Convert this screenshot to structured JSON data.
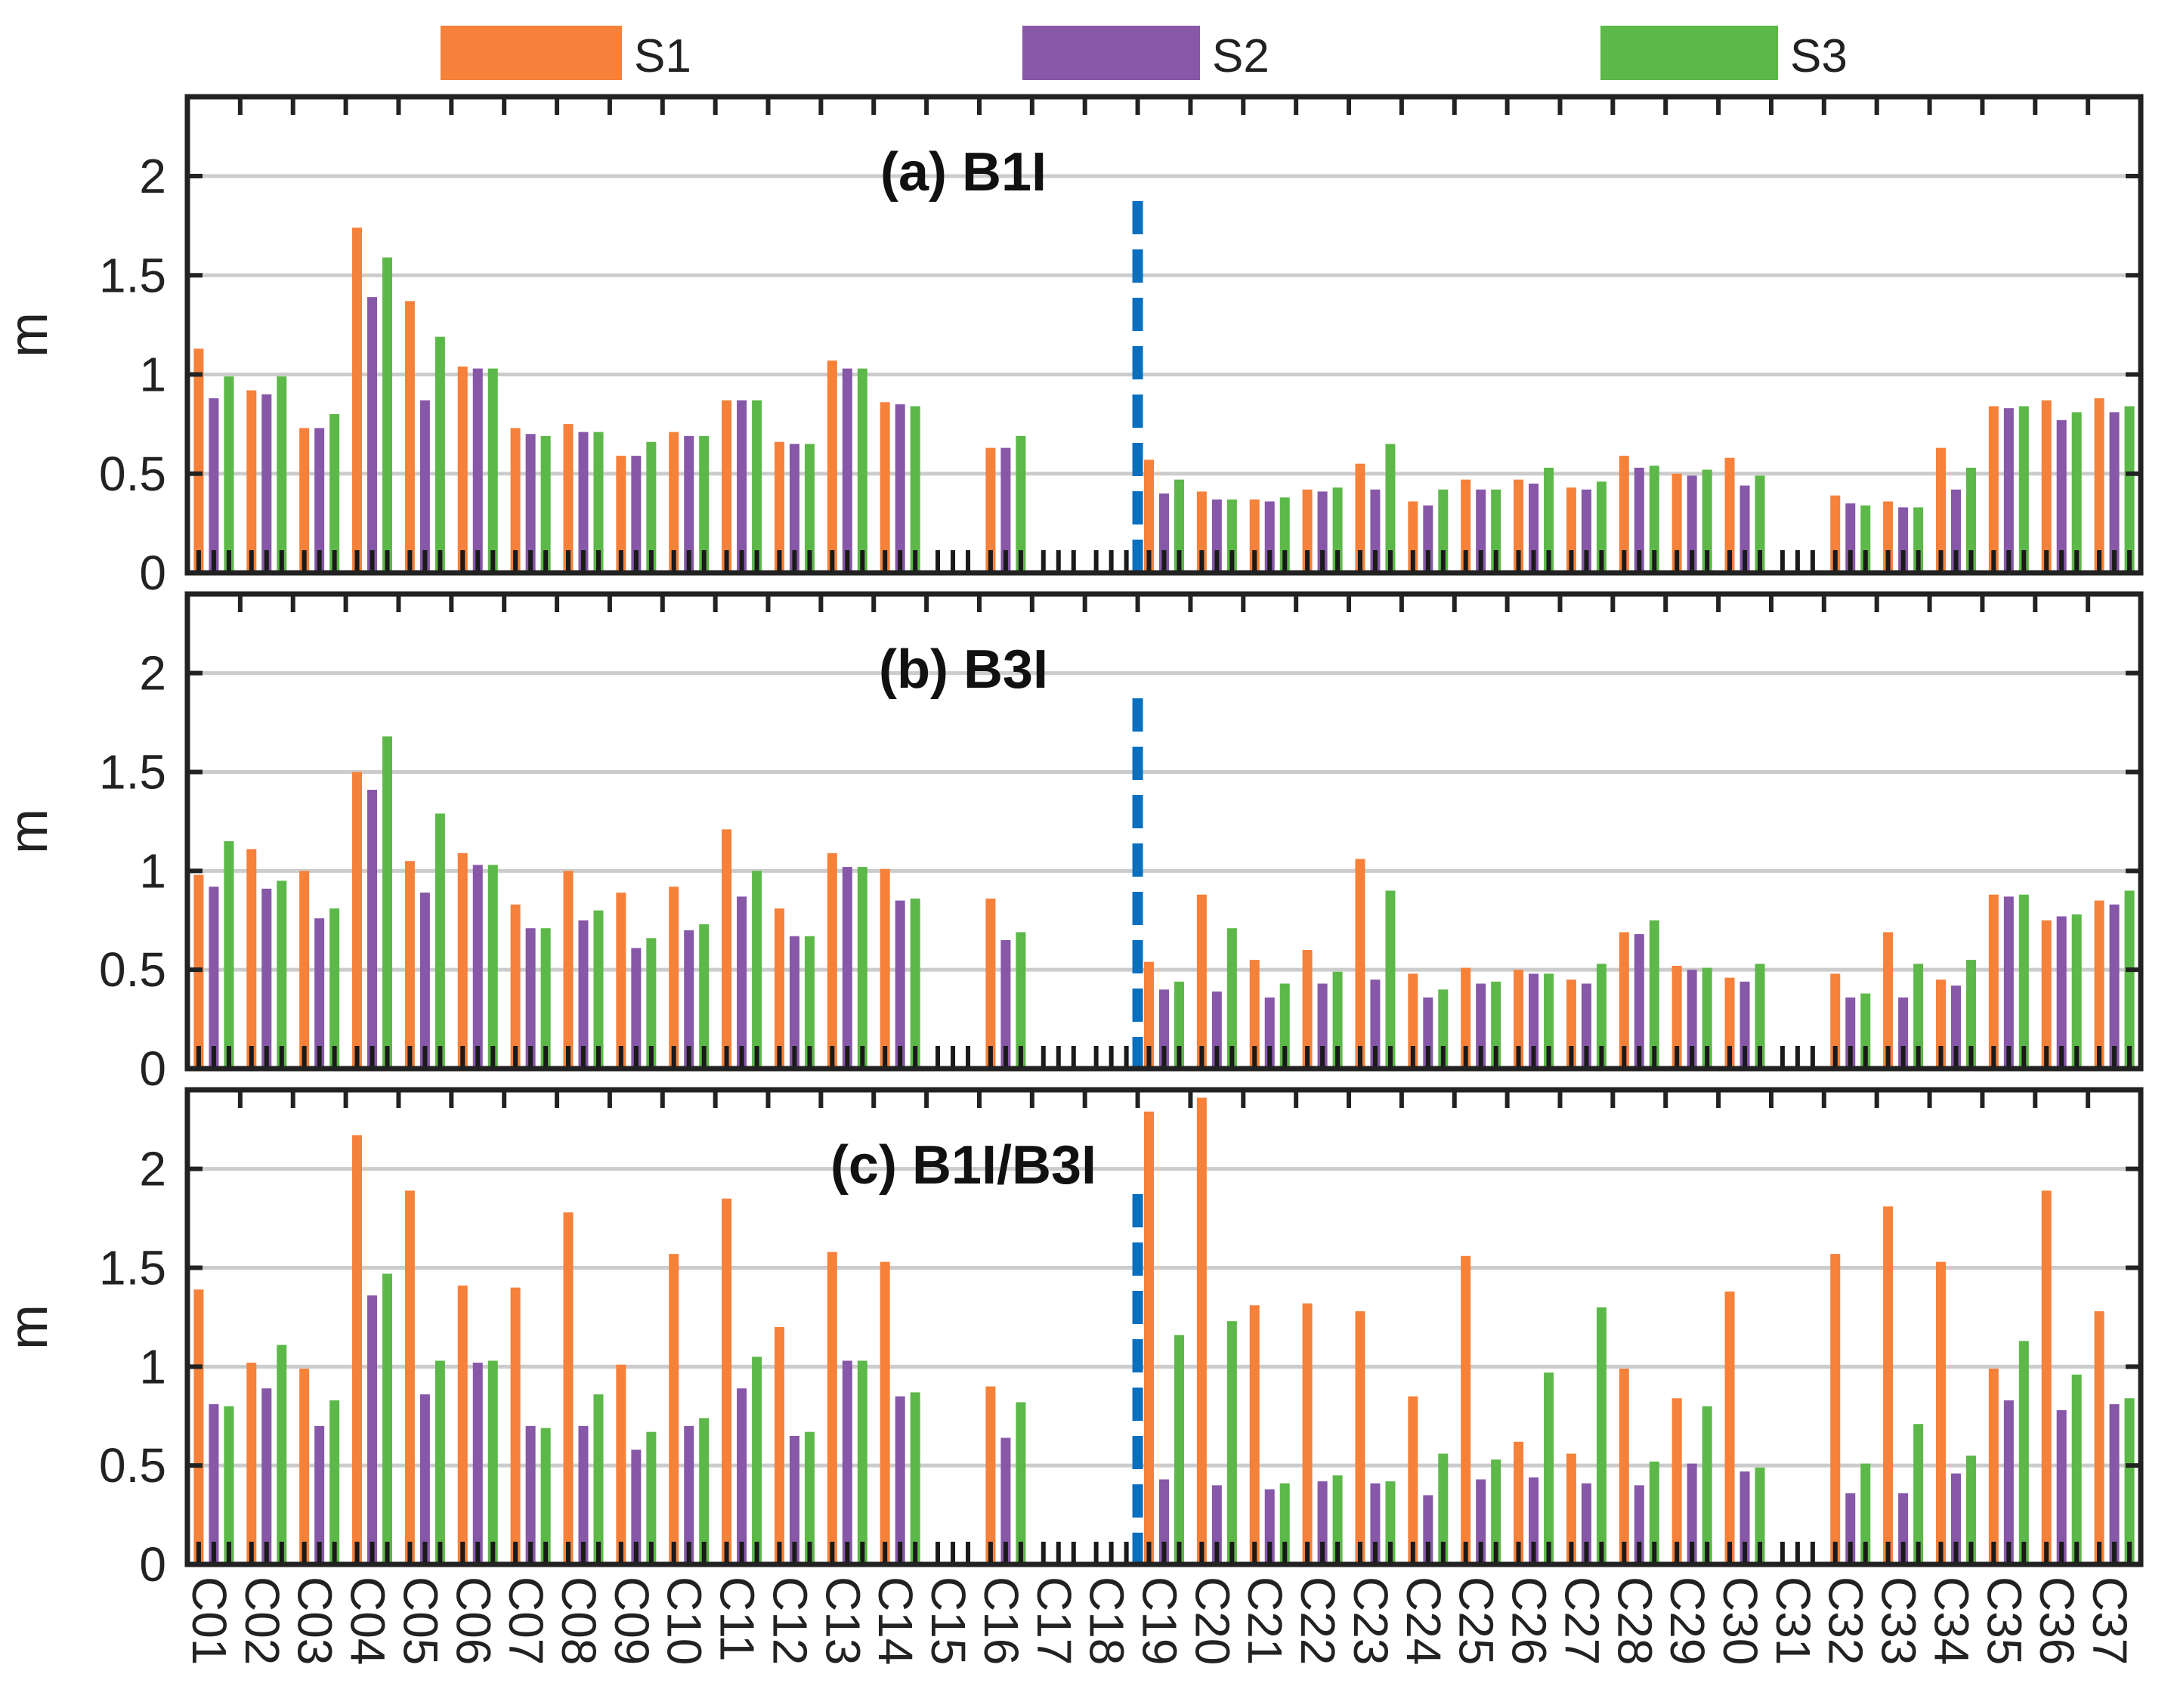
{
  "legend": [
    {
      "label": "S1",
      "color": "#F5813A"
    },
    {
      "label": "S2",
      "color": "#8757A8"
    },
    {
      "label": "S3",
      "color": "#5CB848"
    }
  ],
  "colors": {
    "divider": "#0A6FBF",
    "grid": "#CCCCCC",
    "frame": "#222222"
  },
  "chart_data": [
    {
      "type": "bar",
      "title": "(a) B1I",
      "xlabel": "",
      "ylabel": "m",
      "ylim": [
        0,
        2.4
      ],
      "yticks": [
        "0",
        "0.5",
        "1",
        "1.5",
        "2"
      ],
      "grid": true,
      "divider_after": "C18",
      "categories": [
        "C01",
        "C02",
        "C03",
        "C04",
        "C05",
        "C06",
        "C07",
        "C08",
        "C09",
        "C10",
        "C11",
        "C12",
        "C13",
        "C14",
        "C15",
        "C16",
        "C17",
        "C18",
        "C19",
        "C20",
        "C21",
        "C22",
        "C23",
        "C24",
        "C25",
        "C26",
        "C27",
        "C28",
        "C29",
        "C30",
        "C31",
        "C32",
        "C33",
        "C34",
        "C35",
        "C36",
        "C37"
      ],
      "series": [
        {
          "name": "S1",
          "values": [
            1.13,
            0.92,
            0.73,
            1.74,
            1.37,
            1.04,
            0.73,
            0.75,
            0.59,
            0.71,
            0.87,
            0.66,
            1.07,
            0.86,
            null,
            0.63,
            null,
            null,
            0.57,
            0.41,
            0.37,
            0.42,
            0.55,
            0.36,
            0.47,
            0.47,
            0.43,
            0.59,
            0.5,
            0.58,
            null,
            0.39,
            0.36,
            0.63,
            0.84,
            0.87,
            0.88
          ]
        },
        {
          "name": "S2",
          "values": [
            0.88,
            0.9,
            0.73,
            1.39,
            0.87,
            1.03,
            0.7,
            0.71,
            0.59,
            0.69,
            0.87,
            0.65,
            1.03,
            0.85,
            null,
            0.63,
            null,
            null,
            0.4,
            0.37,
            0.36,
            0.41,
            0.42,
            0.34,
            0.42,
            0.45,
            0.42,
            0.53,
            0.49,
            0.44,
            null,
            0.35,
            0.33,
            0.42,
            0.83,
            0.77,
            0.81
          ]
        },
        {
          "name": "S3",
          "values": [
            0.99,
            0.99,
            0.8,
            1.59,
            1.19,
            1.03,
            0.69,
            0.71,
            0.66,
            0.69,
            0.87,
            0.65,
            1.03,
            0.84,
            null,
            0.69,
            null,
            null,
            0.47,
            0.37,
            0.38,
            0.43,
            0.65,
            0.42,
            0.42,
            0.53,
            0.46,
            0.54,
            0.52,
            0.49,
            null,
            0.34,
            0.33,
            0.53,
            0.84,
            0.81,
            0.84
          ]
        }
      ]
    },
    {
      "type": "bar",
      "title": "(b) B3I",
      "xlabel": "",
      "ylabel": "m",
      "ylim": [
        0,
        2.4
      ],
      "yticks": [
        "0",
        "0.5",
        "1",
        "1.5",
        "2"
      ],
      "grid": true,
      "divider_after": "C18",
      "categories": [
        "C01",
        "C02",
        "C03",
        "C04",
        "C05",
        "C06",
        "C07",
        "C08",
        "C09",
        "C10",
        "C11",
        "C12",
        "C13",
        "C14",
        "C15",
        "C16",
        "C17",
        "C18",
        "C19",
        "C20",
        "C21",
        "C22",
        "C23",
        "C24",
        "C25",
        "C26",
        "C27",
        "C28",
        "C29",
        "C30",
        "C31",
        "C32",
        "C33",
        "C34",
        "C35",
        "C36",
        "C37"
      ],
      "series": [
        {
          "name": "S1",
          "values": [
            0.98,
            1.11,
            1.0,
            1.5,
            1.05,
            1.09,
            0.83,
            1.0,
            0.89,
            0.92,
            1.21,
            0.81,
            1.09,
            1.01,
            null,
            0.86,
            null,
            null,
            0.54,
            0.88,
            0.55,
            0.6,
            1.06,
            0.48,
            0.51,
            0.5,
            0.45,
            0.69,
            0.52,
            0.46,
            null,
            0.48,
            0.69,
            0.45,
            0.88,
            0.75,
            0.85
          ]
        },
        {
          "name": "S2",
          "values": [
            0.92,
            0.91,
            0.76,
            1.41,
            0.89,
            1.03,
            0.71,
            0.75,
            0.61,
            0.7,
            0.87,
            0.67,
            1.02,
            0.85,
            null,
            0.65,
            null,
            null,
            0.4,
            0.39,
            0.36,
            0.43,
            0.45,
            0.36,
            0.43,
            0.48,
            0.43,
            0.68,
            0.5,
            0.44,
            null,
            0.36,
            0.36,
            0.42,
            0.87,
            0.77,
            0.83
          ]
        },
        {
          "name": "S3",
          "values": [
            1.15,
            0.95,
            0.81,
            1.68,
            1.29,
            1.03,
            0.71,
            0.8,
            0.66,
            0.73,
            1.0,
            0.67,
            1.02,
            0.86,
            null,
            0.69,
            null,
            null,
            0.44,
            0.71,
            0.43,
            0.49,
            0.9,
            0.4,
            0.44,
            0.48,
            0.53,
            0.75,
            0.51,
            0.53,
            null,
            0.38,
            0.53,
            0.55,
            0.88,
            0.78,
            0.9
          ]
        }
      ]
    },
    {
      "type": "bar",
      "title": "(c) B1I/B3I",
      "xlabel": "",
      "ylabel": "m",
      "ylim": [
        0,
        2.4
      ],
      "yticks": [
        "0",
        "0.5",
        "1",
        "1.5",
        "2"
      ],
      "grid": true,
      "divider_after": "C18",
      "categories": [
        "C01",
        "C02",
        "C03",
        "C04",
        "C05",
        "C06",
        "C07",
        "C08",
        "C09",
        "C10",
        "C11",
        "C12",
        "C13",
        "C14",
        "C15",
        "C16",
        "C17",
        "C18",
        "C19",
        "C20",
        "C21",
        "C22",
        "C23",
        "C24",
        "C25",
        "C26",
        "C27",
        "C28",
        "C29",
        "C30",
        "C31",
        "C32",
        "C33",
        "C34",
        "C35",
        "C36",
        "C37"
      ],
      "series": [
        {
          "name": "S1",
          "values": [
            1.39,
            1.02,
            0.99,
            2.17,
            1.89,
            1.41,
            1.4,
            1.78,
            1.01,
            1.57,
            1.85,
            1.2,
            1.58,
            1.53,
            null,
            0.9,
            null,
            null,
            2.29,
            2.36,
            1.31,
            1.32,
            1.28,
            0.85,
            1.56,
            0.62,
            0.56,
            0.99,
            0.84,
            1.38,
            null,
            1.57,
            1.81,
            1.53,
            0.99,
            1.89,
            1.28
          ]
        },
        {
          "name": "S2",
          "values": [
            0.81,
            0.89,
            0.7,
            1.36,
            0.86,
            1.02,
            0.7,
            0.7,
            0.58,
            0.7,
            0.89,
            0.65,
            1.03,
            0.85,
            null,
            0.64,
            null,
            null,
            0.43,
            0.4,
            0.38,
            0.42,
            0.41,
            0.35,
            0.43,
            0.44,
            0.41,
            0.4,
            0.51,
            0.47,
            null,
            0.36,
            0.36,
            0.46,
            0.83,
            0.78,
            0.81
          ]
        },
        {
          "name": "S3",
          "values": [
            0.8,
            1.11,
            0.83,
            1.47,
            1.03,
            1.03,
            0.69,
            0.86,
            0.67,
            0.74,
            1.05,
            0.67,
            1.03,
            0.87,
            null,
            0.82,
            null,
            null,
            1.16,
            1.23,
            0.41,
            0.45,
            0.42,
            0.56,
            0.53,
            0.97,
            1.3,
            0.52,
            0.8,
            0.49,
            null,
            0.51,
            0.71,
            0.55,
            1.13,
            0.96,
            0.84
          ]
        }
      ]
    }
  ]
}
